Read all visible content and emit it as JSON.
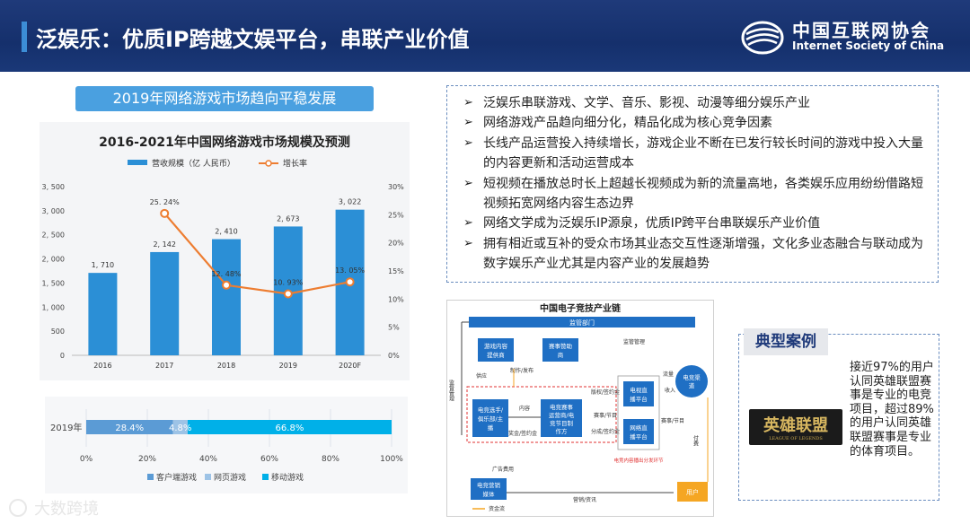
{
  "header": {
    "title": "泛娱乐：优质IP跨越文娱平台，串联产业价值",
    "logo_cn": "中国互联网协会",
    "logo_en": "Internet Society of China"
  },
  "left_badge": "2019年网络游戏市场趋向平稳发展",
  "chart_data": [
    {
      "type": "bar",
      "title": "2016-2021年中国网络游戏市场规模及预测",
      "categories": [
        "2016",
        "2017",
        "2018",
        "2019",
        "2020F"
      ],
      "series": [
        {
          "name": "营收规模（亿 人民币）",
          "type": "bar",
          "color": "#2b8fd6",
          "values": [
            1710,
            2142,
            2410,
            2673,
            3022
          ],
          "labels": [
            "1, 710",
            "2, 142",
            "2, 410",
            "2, 673",
            "3, 022"
          ]
        },
        {
          "name": "增长率",
          "type": "line",
          "color": "#ed7d31",
          "axis": "right",
          "values": [
            null,
            25.24,
            12.48,
            10.93,
            13.05
          ],
          "labels": [
            "",
            "25. 24%",
            "12. 48%",
            "10. 93%",
            "13. 05%"
          ]
        }
      ],
      "ylim": [
        0,
        3500
      ],
      "y_ticks": [
        "0",
        "500",
        "1, 000",
        "1, 500",
        "2, 000",
        "2, 500",
        "3, 000",
        "3, 500"
      ],
      "y2lim": [
        0,
        30
      ],
      "y2_ticks": [
        "0%",
        "5%",
        "10%",
        "15%",
        "20%",
        "25%",
        "30%"
      ],
      "legend": "top"
    },
    {
      "type": "bar",
      "orientation": "horizontal-stacked",
      "categories": [
        "2019年"
      ],
      "series": [
        {
          "name": "客户端游戏",
          "color": "#5b9bd5",
          "values": [
            28.4
          ],
          "label": "28.4%"
        },
        {
          "name": "网页游戏",
          "color": "#9dc3e6",
          "values": [
            4.8
          ],
          "label": "4.8%"
        },
        {
          "name": "移动游戏",
          "color": "#00b0e8",
          "values": [
            66.8
          ],
          "label": "66.8%"
        }
      ],
      "xlim": [
        0,
        100
      ],
      "x_ticks": [
        "0%",
        "20%",
        "40%",
        "60%",
        "80%",
        "100%"
      ],
      "legend": "bottom"
    }
  ],
  "bullets": [
    "泛娱乐串联游戏、文学、音乐、影视、动漫等细分娱乐产业",
    "网络游戏产品趋向细分化，精品化成为核心竞争因素",
    "长线产品运营投入持续增长，游戏企业不断在已发行较长时间的游戏中投入大量的内容更新和活动运营成本",
    "短视频在播放总时长上超越长视频成为新的流量高地，各类娱乐应用纷纷借路短视频拓宽网络内容生态边界",
    "网络文学成为泛娱乐IP源泉，优质IP跨平台串联娱乐产业价值",
    "拥有相近或互补的受众市场其业态交互性逐渐增强，文化多业态融合与联动成为数字娱乐产业尤其是内容产业的发展趋势"
  ],
  "diagram": {
    "title": "中国电子竞技产业链",
    "nodes": {
      "regulator": "监管部门",
      "game_provider": "游戏内容提供商",
      "sponsor": "赛事赞助商",
      "players": "电竞选手/俱乐部/主播",
      "organizer": "电竞赛事运营商/电竞节目制作方",
      "live_platform": "电视直播平台",
      "net_platform": "网络直播平台",
      "channel": "电竞渠道",
      "marketing": "电竞营销媒体",
      "user": "用户",
      "distribution": "电竞内容播出分发环节"
    },
    "edge_labels": {
      "supervise": "监督管理",
      "supervise2": "监管管理",
      "produce": "制作/发布",
      "supply": "供应",
      "content": "内容",
      "prize": "奖金/签约金",
      "copyright": "版权/签约金",
      "event": "赛事/节目",
      "share": "分成/签约金",
      "event2": "赛事/节目",
      "traffic": "流量",
      "income": "收入",
      "pay": "付费",
      "ad": "广告费用",
      "marketing_info": "营销/资讯",
      "capital": "资金流"
    }
  },
  "case": {
    "label": "典型案例",
    "text": "接近97%的用户认同英雄联盟赛事是专业的电竞项目，超过89%的用户认同英雄联盟赛事是专业的体育项目。",
    "logo_text": "英雄联盟",
    "logo_sub": "LEAGUE OF LEGENDS"
  },
  "footer": "大数跨境",
  "colors": {
    "header": "#1f3a7a",
    "accent": "#4aa0e0",
    "bar": "#2b8fd6",
    "line": "#ed7d31"
  }
}
